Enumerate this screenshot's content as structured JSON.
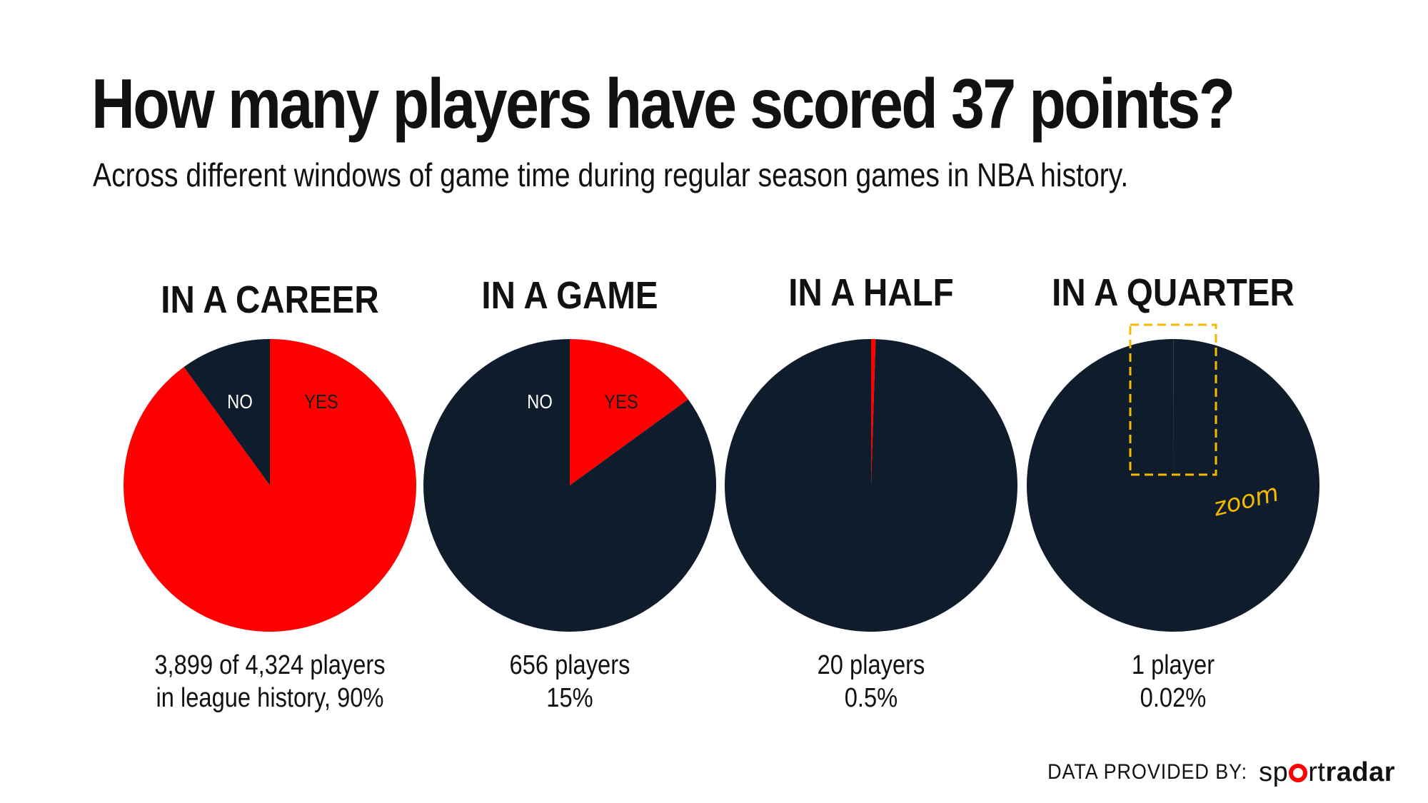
{
  "title": "How many players have scored 37 points?",
  "subtitle": "Across different windows of game time during regular season games in NBA history.",
  "colors": {
    "yes": "#ff0000",
    "no": "#0f1c2b",
    "zoom": "#f5b800"
  },
  "chart_data": [
    {
      "type": "pie",
      "title": "IN A CAREER",
      "slices": [
        {
          "label": "YES",
          "value": 90
        },
        {
          "label": "NO",
          "value": 10
        }
      ],
      "caption": [
        "3,899 of 4,324 players",
        "in league history, 90%"
      ]
    },
    {
      "type": "pie",
      "title": "IN A GAME",
      "slices": [
        {
          "label": "YES",
          "value": 15
        },
        {
          "label": "NO",
          "value": 85
        }
      ],
      "caption": [
        "656 players",
        "15%"
      ]
    },
    {
      "type": "pie",
      "title": "IN A HALF",
      "slices": [
        {
          "label": "",
          "value": 0.5
        },
        {
          "label": "",
          "value": 99.5
        }
      ],
      "caption": [
        "20 players",
        "0.5%"
      ]
    },
    {
      "type": "pie",
      "title": "IN A QUARTER",
      "slices": [
        {
          "label": "",
          "value": 0.02
        },
        {
          "label": "",
          "value": 99.98
        }
      ],
      "caption": [
        "1 player",
        "0.02%"
      ],
      "annotation": "zoom"
    }
  ],
  "footer": {
    "label": "DATA PROVIDED BY:",
    "brand_light": "sp",
    "brand_mid": "rt",
    "brand_bold": "radar"
  }
}
